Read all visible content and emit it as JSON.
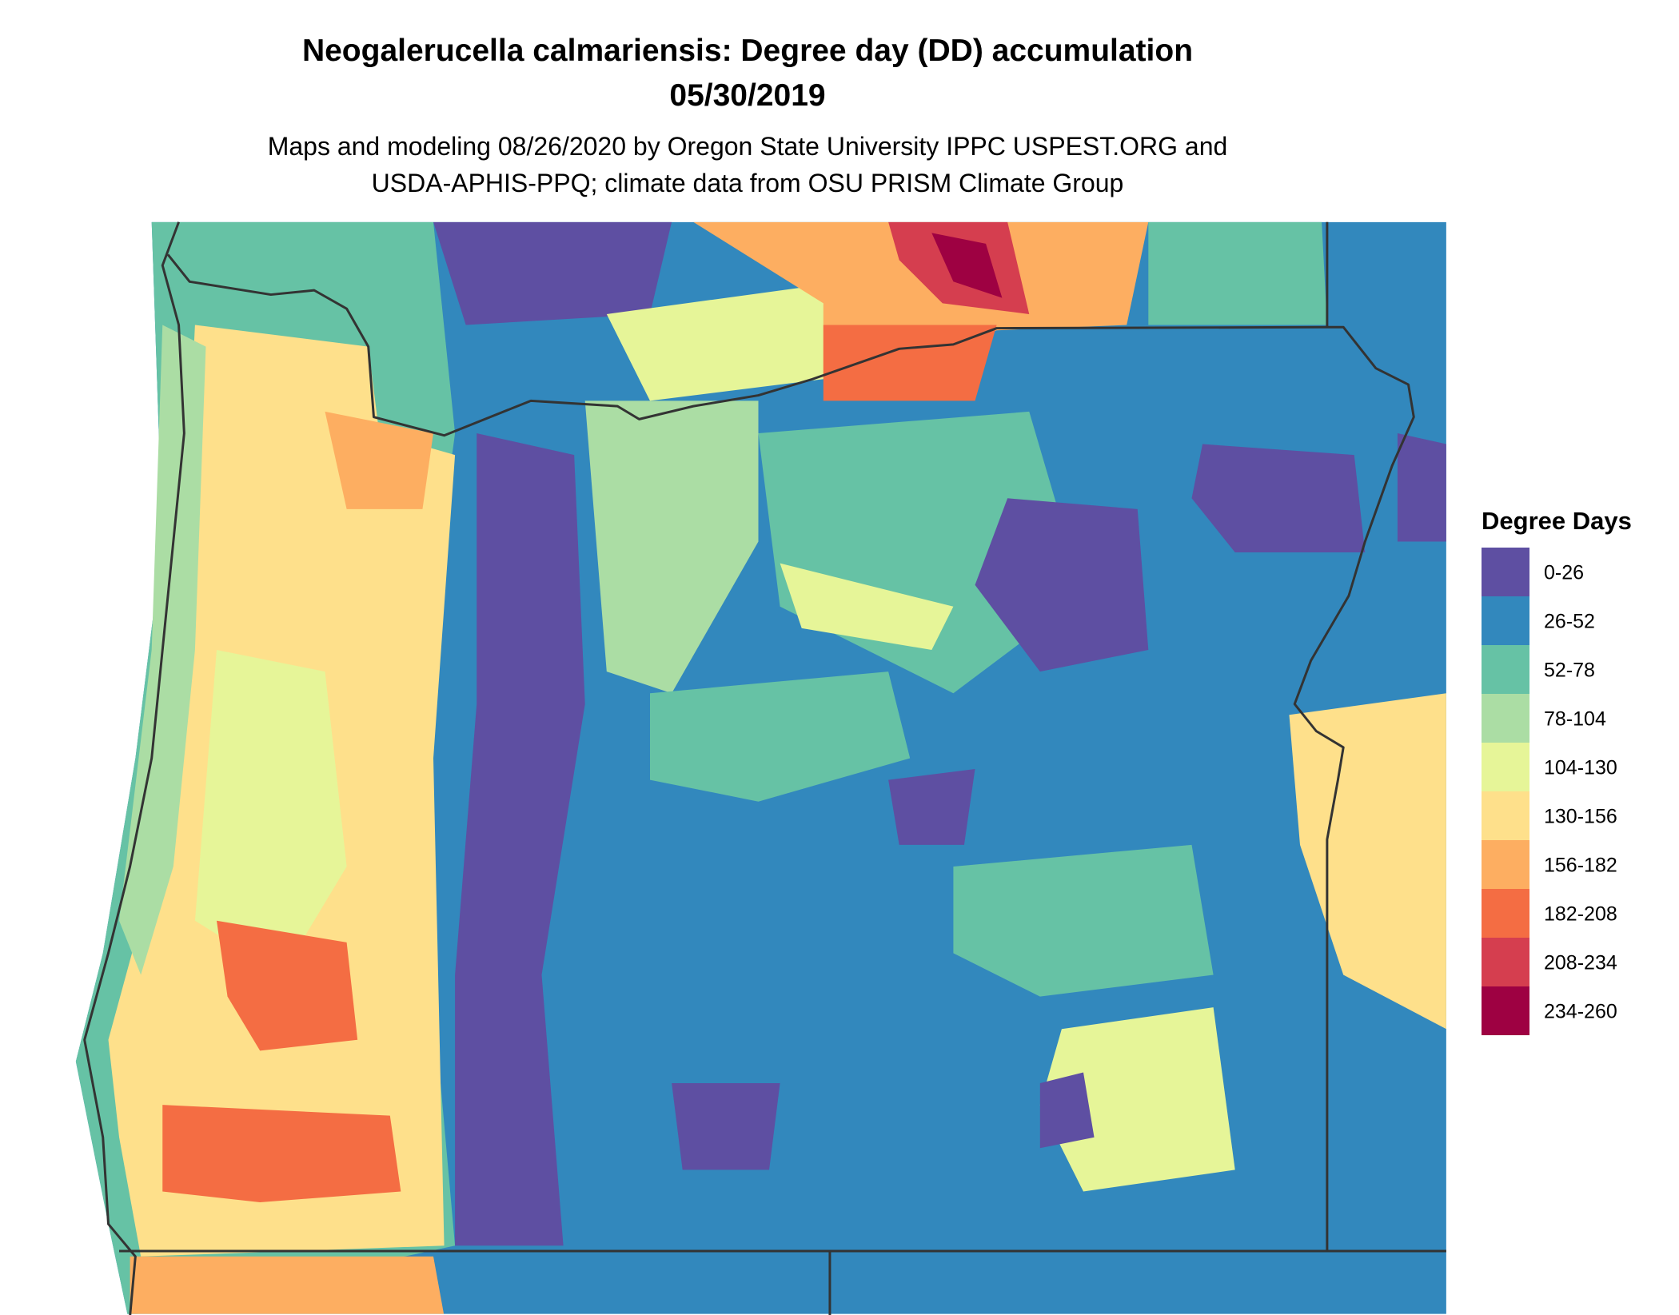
{
  "header": {
    "title": "Neogalerucella calmariensis: Degree day (DD) accumulation",
    "date": "05/30/2019",
    "subtitle": [
      "Maps and modeling 08/26/2020 by Oregon State University IPPC USPEST.ORG and",
      "USDA-APHIS-PPQ; climate data from OSU PRISM Climate Group"
    ]
  },
  "legend": {
    "title": "Degree Days",
    "items": [
      {
        "label": "0-26",
        "color": "#5e4fa2"
      },
      {
        "label": "26-52",
        "color": "#3288bd"
      },
      {
        "label": "52-78",
        "color": "#66c2a5"
      },
      {
        "label": "78-104",
        "color": "#abdda4"
      },
      {
        "label": "104-130",
        "color": "#e6f598"
      },
      {
        "label": "130-156",
        "color": "#fee08b"
      },
      {
        "label": "156-182",
        "color": "#fdae61"
      },
      {
        "label": "182-208",
        "color": "#f46d43"
      },
      {
        "label": "208-234",
        "color": "#d53e4f"
      },
      {
        "label": "234-260",
        "color": "#9e0142"
      }
    ]
  }
}
